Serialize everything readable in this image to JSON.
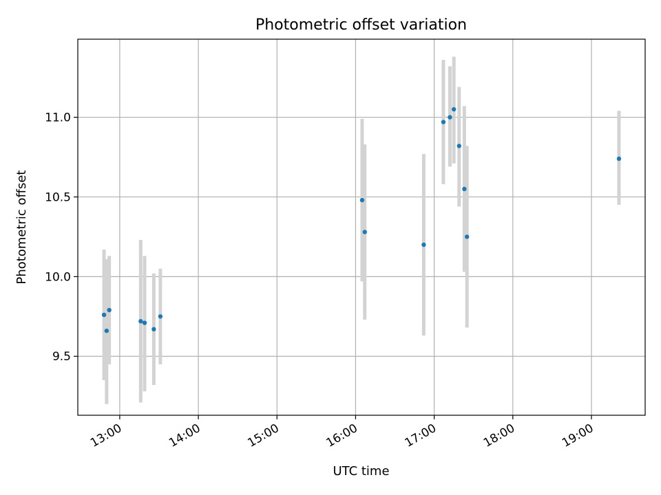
{
  "chart_data": {
    "type": "scatter",
    "title": "Photometric offset variation",
    "xlabel": "UTC time",
    "ylabel": "Photometric offset",
    "x_tick_labels": [
      "13:00",
      "14:00",
      "15:00",
      "16:00",
      "17:00",
      "18:00",
      "19:00"
    ],
    "x_ticks": [
      "13:00",
      "14:00",
      "15:00",
      "16:00",
      "17:00",
      "18:00",
      "19:00"
    ],
    "y_ticks": [
      9.5,
      10.0,
      10.5,
      11.0
    ],
    "y_tick_labels": [
      "9.5",
      "10.0",
      "10.5",
      "11.0"
    ],
    "xlim": [
      "12:28",
      "19:41"
    ],
    "ylim": [
      9.13,
      11.49
    ],
    "grid": true,
    "marker_color": "#1f77b4",
    "errorbar_color": "#d3d3d3",
    "points": [
      {
        "x": "12:48",
        "y": 9.76,
        "ylow": 9.35,
        "yhigh": 10.17
      },
      {
        "x": "12:50",
        "y": 9.66,
        "ylow": 9.2,
        "yhigh": 10.11
      },
      {
        "x": "12:52",
        "y": 9.79,
        "ylow": 9.45,
        "yhigh": 10.13
      },
      {
        "x": "13:16",
        "y": 9.72,
        "ylow": 9.21,
        "yhigh": 10.23
      },
      {
        "x": "13:19",
        "y": 9.71,
        "ylow": 9.28,
        "yhigh": 10.13
      },
      {
        "x": "13:26",
        "y": 9.67,
        "ylow": 9.32,
        "yhigh": 10.02
      },
      {
        "x": "13:31",
        "y": 9.75,
        "ylow": 9.45,
        "yhigh": 10.05
      },
      {
        "x": "16:05",
        "y": 10.48,
        "ylow": 9.97,
        "yhigh": 10.99
      },
      {
        "x": "16:07",
        "y": 10.28,
        "ylow": 9.73,
        "yhigh": 10.83
      },
      {
        "x": "16:52",
        "y": 10.2,
        "ylow": 9.63,
        "yhigh": 10.77
      },
      {
        "x": "17:07",
        "y": 10.97,
        "ylow": 10.58,
        "yhigh": 11.36
      },
      {
        "x": "17:12",
        "y": 11.0,
        "ylow": 10.69,
        "yhigh": 11.32
      },
      {
        "x": "17:15",
        "y": 11.05,
        "ylow": 10.71,
        "yhigh": 11.38
      },
      {
        "x": "17:19",
        "y": 10.82,
        "ylow": 10.44,
        "yhigh": 11.19
      },
      {
        "x": "17:23",
        "y": 10.55,
        "ylow": 10.03,
        "yhigh": 11.07
      },
      {
        "x": "17:25",
        "y": 10.25,
        "ylow": 9.68,
        "yhigh": 10.82
      },
      {
        "x": "19:21",
        "y": 10.74,
        "ylow": 10.45,
        "yhigh": 11.04
      }
    ]
  }
}
